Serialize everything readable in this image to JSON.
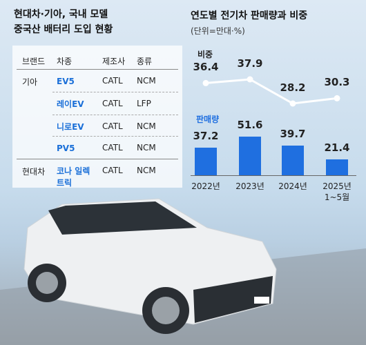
{
  "table": {
    "title": [
      "현대차·기아, 국내 모델",
      "중국산 배터리 도입 현황"
    ],
    "header": [
      "브랜드",
      "차종",
      "제조사",
      "종류"
    ],
    "rows": [
      {
        "brand": "기아",
        "model": "EV5",
        "maker": "CATL",
        "kind": "NCM"
      },
      {
        "model": "레이EV",
        "maker": "CATL",
        "kind": "LFP"
      },
      {
        "model": "니로EV",
        "maker": "CATL",
        "kind": "NCM"
      },
      {
        "model": "PV5",
        "maker": "CATL",
        "kind": "NCM"
      },
      {
        "brand": "현대차",
        "model": "코나 일렉트릭",
        "maker": "CATL",
        "kind": "NCM"
      }
    ]
  },
  "chart_data": {
    "type": "bar_line",
    "title": "연도별 전기차 판매량과 비중",
    "subtitle": "(단위=만대·%)",
    "categories": [
      "2022년",
      "2023년",
      "2024년",
      "2025년 1~5월"
    ],
    "series": [
      {
        "name": "판매량",
        "type": "bar",
        "color": "#1f6fe0",
        "values": [
          37.2,
          51.6,
          39.7,
          21.4
        ]
      },
      {
        "name": "비중",
        "type": "line",
        "color": "#ffffff",
        "values": [
          36.4,
          37.9,
          28.2,
          30.3
        ]
      }
    ]
  }
}
